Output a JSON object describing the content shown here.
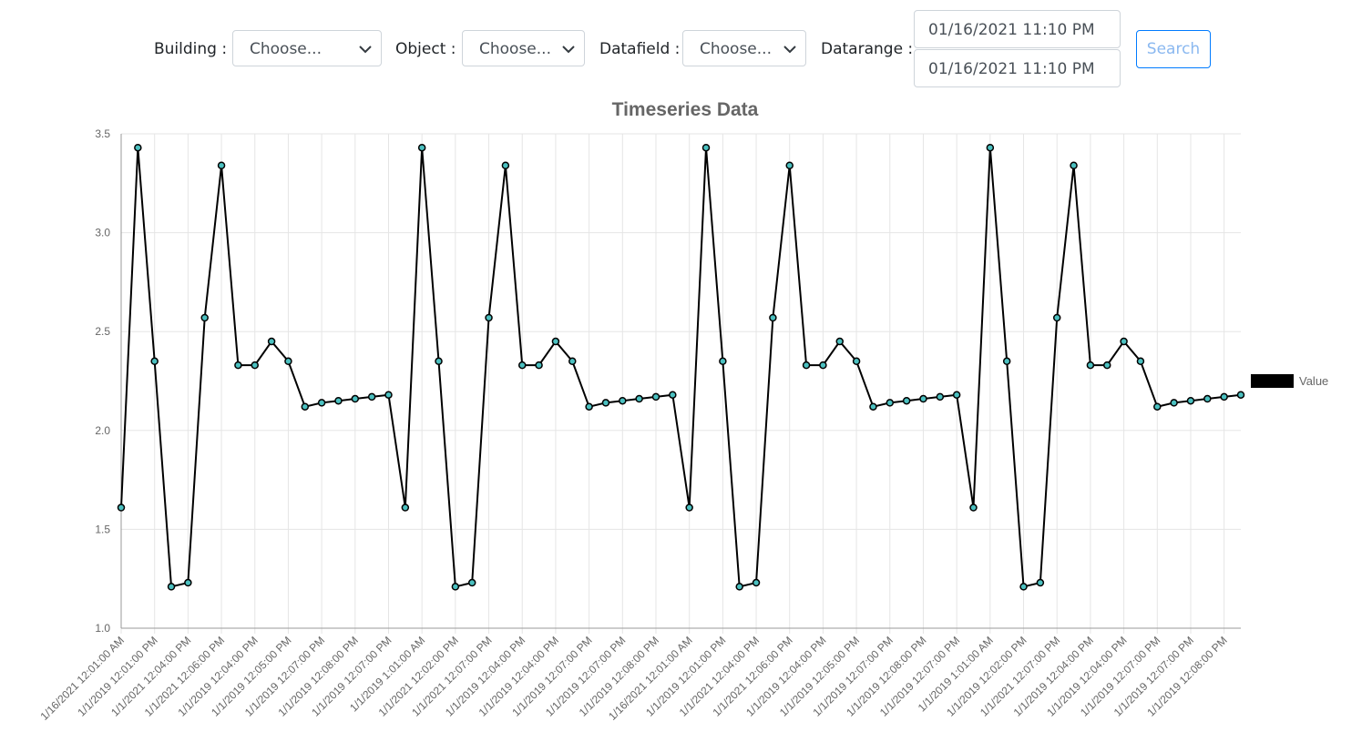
{
  "form": {
    "building": {
      "label": "Building :",
      "placeholder": "Choose..."
    },
    "object": {
      "label": "Object :",
      "placeholder": "Choose..."
    },
    "datafield": {
      "label": "Datafield :",
      "placeholder": "Choose..."
    },
    "datarange": {
      "label": "Datarange :",
      "start": "01/16/2021 11:10 PM",
      "end": "01/16/2021 11:10 PM"
    },
    "search_button": "Search"
  },
  "chart_data": {
    "type": "line",
    "title": "Timeseries Data",
    "categories": [
      "1/16/2021 12:01:00 AM",
      null,
      "1/1/2019 12:01:00 PM",
      null,
      "1/1/2021 12:04:00 PM",
      null,
      "1/1/2021 12:06:00 PM",
      null,
      "1/1/2019 12:04:00 PM",
      null,
      "1/1/2019 12:05:00 PM",
      null,
      "1/1/2019 12:07:00 PM",
      null,
      "1/1/2019 12:08:00 PM",
      null,
      "1/1/2019 12:07:00 PM",
      null,
      "1/1/2019 1:01:00 AM",
      null,
      "1/1/2021 12:02:00 PM",
      null,
      "1/1/2021 12:07:00 PM",
      null,
      "1/1/2019 12:04:00 PM",
      null,
      "1/1/2019 12:04:00 PM",
      null,
      "1/1/2019 12:07:00 PM",
      null,
      "1/1/2019 12:07:00 PM",
      null,
      "1/1/2019 12:08:00 PM",
      null,
      "1/16/2021 12:01:00 AM",
      null,
      "1/1/2019 12:01:00 PM",
      null,
      "1/1/2021 12:04:00 PM",
      null,
      "1/1/2021 12:06:00 PM",
      null,
      "1/1/2019 12:04:00 PM",
      null,
      "1/1/2019 12:05:00 PM",
      null,
      "1/1/2019 12:07:00 PM",
      null,
      "1/1/2019 12:08:00 PM",
      null,
      "1/1/2019 12:07:00 PM",
      null,
      "1/1/2019 1:01:00 AM",
      null,
      "1/1/2019 12:02:00 PM",
      null,
      "1/1/2021 12:07:00 PM",
      null,
      "1/1/2019 12:04:00 PM",
      null,
      "1/1/2019 12:04:00 PM",
      null,
      "1/1/2019 12:07:00 PM",
      null,
      "1/1/2019 12:07:00 PM",
      null,
      "1/1/2019 12:08:00 PM",
      null
    ],
    "series": [
      {
        "name": "Value",
        "color": "#000000",
        "point_color": "#4bc0c0",
        "values": [
          1.61,
          3.43,
          2.35,
          1.21,
          1.23,
          2.57,
          3.34,
          2.33,
          2.33,
          2.45,
          2.35,
          2.12,
          2.14,
          2.15,
          2.16,
          2.17,
          2.18,
          1.61,
          3.43,
          2.35,
          1.21,
          1.23,
          2.57,
          3.34,
          2.33,
          2.33,
          2.45,
          2.35,
          2.12,
          2.14,
          2.15,
          2.16,
          2.17,
          2.18,
          1.61,
          3.43,
          2.35,
          1.21,
          1.23,
          2.57,
          3.34,
          2.33,
          2.33,
          2.45,
          2.35,
          2.12,
          2.14,
          2.15,
          2.16,
          2.17,
          2.18,
          1.61,
          3.43,
          2.35,
          1.21,
          1.23,
          2.57,
          3.34,
          2.33,
          2.33,
          2.45,
          2.35,
          2.12,
          2.14,
          2.15,
          2.16,
          2.17,
          2.18
        ]
      }
    ],
    "ylim": [
      1,
      3.5
    ],
    "yticks": [
      {
        "value": 1,
        "label": "1.0"
      },
      1.5,
      {
        "value": 2,
        "label": "2.0"
      },
      2.5,
      {
        "value": 3,
        "label": "3.0"
      },
      3.5
    ],
    "grid": true,
    "legend": "right"
  }
}
